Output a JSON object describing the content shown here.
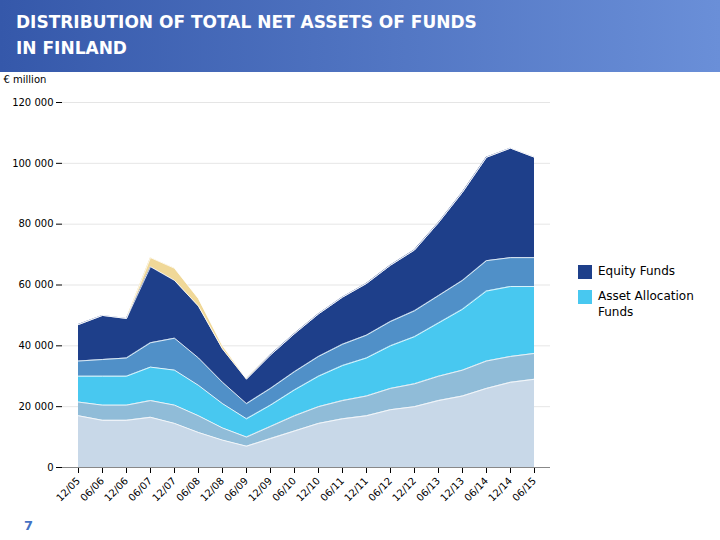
{
  "chart_data": {
    "type": "area",
    "title": "DISTRIBUTION OF TOTAL NET ASSETS OF FUNDS\nIN FINLAND",
    "ylabel": "€ million",
    "categories": [
      "12/05",
      "06/06",
      "12/06",
      "06/07",
      "12/07",
      "06/08",
      "12/08",
      "06/09",
      "12/09",
      "06/10",
      "12/10",
      "06/11",
      "12/11",
      "06/12",
      "12/12",
      "06/13",
      "12/13",
      "06/14",
      "12/14",
      "06/15"
    ],
    "series": [
      {
        "color": "#c8d8e8",
        "values": [
          17000,
          15500,
          15500,
          16500,
          14500,
          11500,
          9000,
          7000,
          9500,
          12000,
          14500,
          16000,
          17000,
          19000,
          20000,
          22000,
          23500,
          26000,
          28000,
          29000
        ]
      },
      {
        "color": "#90bcd8",
        "values": [
          4500,
          5000,
          5000,
          5500,
          6000,
          5500,
          4000,
          3000,
          4000,
          5000,
          5500,
          6000,
          6500,
          7000,
          7500,
          8000,
          8500,
          9000,
          8500,
          8500
        ]
      },
      {
        "name": "Asset Allocation\nFunds",
        "color": "#48c8f0",
        "values": [
          8500,
          9500,
          9500,
          11000,
          11500,
          10000,
          8000,
          6000,
          7000,
          8500,
          10000,
          11500,
          12500,
          14000,
          15500,
          17500,
          20000,
          23000,
          23000,
          22000
        ]
      },
      {
        "color": "#5090c8",
        "values": [
          5000,
          5500,
          6000,
          8000,
          10500,
          9000,
          7000,
          5000,
          5500,
          6000,
          6500,
          7000,
          7500,
          8000,
          8500,
          9000,
          9500,
          10000,
          9500,
          9500
        ]
      },
      {
        "name": "Equity Funds",
        "color": "#1e3f8a",
        "values": [
          12000,
          14500,
          13000,
          25000,
          19000,
          17000,
          11000,
          8000,
          11000,
          12500,
          14000,
          15500,
          17000,
          18500,
          20000,
          24000,
          29000,
          34000,
          36000,
          33000
        ]
      },
      {
        "color": "#f0d898",
        "values": [
          0,
          0,
          0,
          3000,
          4000,
          2500,
          1000,
          200,
          0,
          0,
          0,
          0,
          0,
          0,
          0,
          0,
          0,
          0,
          0,
          0
        ]
      }
    ],
    "ylim": [
      0,
      120000
    ],
    "yticks": [
      0,
      {
        "value": 20000,
        "label": "20 000"
      },
      {
        "value": 40000,
        "label": "40 000"
      },
      {
        "value": 60000,
        "label": "60 000"
      },
      {
        "value": 80000,
        "label": "80 000"
      },
      {
        "value": 100000,
        "label": "100 000"
      },
      {
        "value": 120000,
        "label": "120 000"
      }
    ],
    "grid": true,
    "stacked": true,
    "legend": "right",
    "annotations": [
      "7"
    ]
  }
}
